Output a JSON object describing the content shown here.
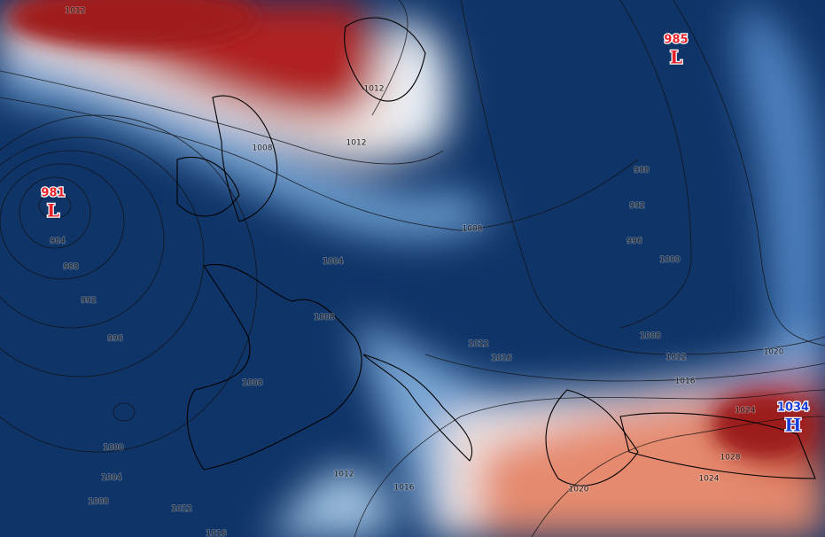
{
  "pressure_centers": [
    {
      "value": 981,
      "letter": "L"
    },
    {
      "value": 985,
      "letter": "L"
    },
    {
      "value": 1034,
      "letter": "H"
    }
  ],
  "isobar_labels": [
    1012,
    1012,
    1012,
    1008,
    1008,
    1004,
    1008,
    984,
    988,
    992,
    996,
    1000,
    1004,
    1008,
    1012,
    1016,
    1008,
    1012,
    1016,
    1012,
    1016,
    1016,
    1012,
    1008,
    1020,
    1024,
    1028,
    1024,
    1020,
    988,
    992,
    996,
    1000
  ]
}
